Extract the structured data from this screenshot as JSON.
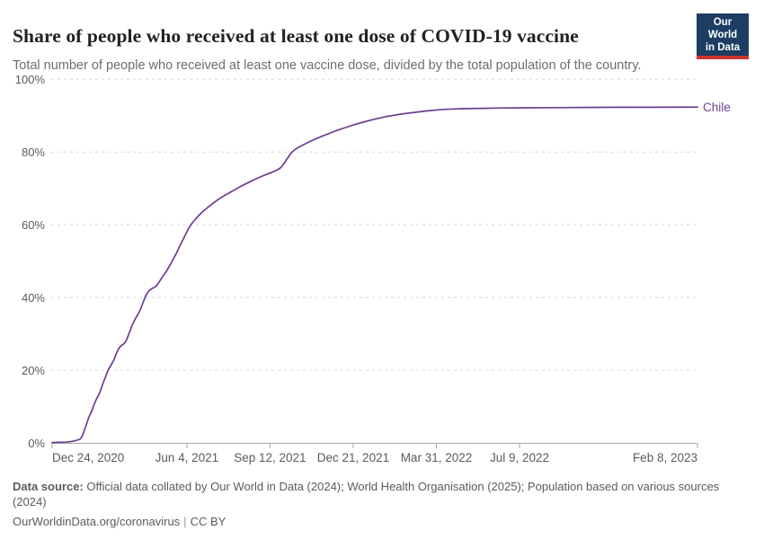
{
  "header": {
    "logo": {
      "line1": "Our World",
      "line2": "in Data"
    }
  },
  "chart_data": {
    "type": "line",
    "title": "Share of people who received at least one dose of COVID-19 vaccine",
    "subtitle": "Total number of people who received at least one vaccine dose, divided by the total population of the country.",
    "legend_position": "right-end-of-line",
    "grid": "dashed-horizontal",
    "ylim": [
      0,
      100
    ],
    "y_axis": {
      "unit": "%",
      "ticks": [
        {
          "label": "0%",
          "value": 0
        },
        {
          "label": "20%",
          "value": 20
        },
        {
          "label": "40%",
          "value": 40
        },
        {
          "label": "60%",
          "value": 60
        },
        {
          "label": "80%",
          "value": 80
        },
        {
          "label": "100%",
          "value": 100
        }
      ]
    },
    "x_axis": {
      "start_date": "Dec 24, 2020",
      "end_date": "Feb 8, 2023",
      "ticks": [
        {
          "label": "Dec 24, 2020",
          "day": 0,
          "align": "left"
        },
        {
          "label": "Jun 4, 2021",
          "day": 162,
          "align": "center"
        },
        {
          "label": "Sep 12, 2021",
          "day": 262,
          "align": "center"
        },
        {
          "label": "Dec 21, 2021",
          "day": 362,
          "align": "center"
        },
        {
          "label": "Mar 31, 2022",
          "day": 462,
          "align": "center"
        },
        {
          "label": "Jul 9, 2022",
          "day": 562,
          "align": "center"
        },
        {
          "label": "Feb 8, 2023",
          "day": 776,
          "align": "right"
        }
      ]
    },
    "series": [
      {
        "name": "Chile",
        "color": "#6d3e91",
        "x_unit": "days since Dec 24, 2020",
        "y_unit": "percent of population",
        "points": [
          [
            0,
            0.1
          ],
          [
            8,
            0.15
          ],
          [
            16,
            0.2
          ],
          [
            24,
            0.4
          ],
          [
            29,
            0.7
          ],
          [
            32,
            0.9
          ],
          [
            34,
            1.1
          ],
          [
            36,
            1.8
          ],
          [
            38,
            3.0
          ],
          [
            40,
            4.3
          ],
          [
            42,
            5.6
          ],
          [
            44,
            7.0
          ],
          [
            46,
            8.0
          ],
          [
            48,
            9.0
          ],
          [
            50,
            10.3
          ],
          [
            52,
            11.4
          ],
          [
            54,
            12.4
          ],
          [
            56,
            13.2
          ],
          [
            58,
            14.3
          ],
          [
            60,
            15.6
          ],
          [
            62,
            16.9
          ],
          [
            64,
            18.0
          ],
          [
            66,
            19.3
          ],
          [
            68,
            20.3
          ],
          [
            70,
            21.1
          ],
          [
            72,
            21.9
          ],
          [
            74,
            22.7
          ],
          [
            76,
            23.9
          ],
          [
            78,
            25.0
          ],
          [
            80,
            25.9
          ],
          [
            82,
            26.5
          ],
          [
            84,
            26.9
          ],
          [
            86,
            27.2
          ],
          [
            88,
            27.7
          ],
          [
            90,
            28.6
          ],
          [
            92,
            29.8
          ],
          [
            94,
            31.0
          ],
          [
            96,
            32.2
          ],
          [
            98,
            33.2
          ],
          [
            100,
            34.1
          ],
          [
            102,
            34.9
          ],
          [
            104,
            35.7
          ],
          [
            106,
            36.6
          ],
          [
            108,
            37.8
          ],
          [
            110,
            39.0
          ],
          [
            112,
            40.2
          ],
          [
            114,
            41.0
          ],
          [
            116,
            41.7
          ],
          [
            119,
            42.3
          ],
          [
            122,
            42.7
          ],
          [
            125,
            43.1
          ],
          [
            128,
            44.0
          ],
          [
            131,
            45.1
          ],
          [
            134,
            46.1
          ],
          [
            137,
            47.1
          ],
          [
            140,
            48.2
          ],
          [
            143,
            49.4
          ],
          [
            146,
            50.7
          ],
          [
            149,
            52.0
          ],
          [
            152,
            53.4
          ],
          [
            155,
            54.8
          ],
          [
            158,
            56.2
          ],
          [
            161,
            57.6
          ],
          [
            164,
            58.9
          ],
          [
            167,
            60.0
          ],
          [
            170,
            60.9
          ],
          [
            174,
            62.0
          ],
          [
            178,
            62.9
          ],
          [
            183,
            64.0
          ],
          [
            188,
            64.9
          ],
          [
            194,
            66.0
          ],
          [
            200,
            67.0
          ],
          [
            207,
            68.0
          ],
          [
            214,
            68.9
          ],
          [
            221,
            69.8
          ],
          [
            228,
            70.7
          ],
          [
            236,
            71.6
          ],
          [
            243,
            72.4
          ],
          [
            250,
            73.1
          ],
          [
            256,
            73.7
          ],
          [
            262,
            74.2
          ],
          [
            267,
            74.7
          ],
          [
            271,
            75.1
          ],
          [
            275,
            75.7
          ],
          [
            278,
            76.6
          ],
          [
            281,
            77.6
          ],
          [
            284,
            78.6
          ],
          [
            287,
            79.6
          ],
          [
            290,
            80.3
          ],
          [
            294,
            81.0
          ],
          [
            298,
            81.5
          ],
          [
            303,
            82.1
          ],
          [
            309,
            82.8
          ],
          [
            316,
            83.5
          ],
          [
            324,
            84.3
          ],
          [
            332,
            85.0
          ],
          [
            341,
            85.8
          ],
          [
            351,
            86.6
          ],
          [
            362,
            87.4
          ],
          [
            374,
            88.2
          ],
          [
            387,
            89.0
          ],
          [
            401,
            89.7
          ],
          [
            416,
            90.3
          ],
          [
            432,
            90.8
          ],
          [
            450,
            91.3
          ],
          [
            470,
            91.7
          ],
          [
            492,
            91.9
          ],
          [
            516,
            92.0
          ],
          [
            542,
            92.1
          ],
          [
            570,
            92.15
          ],
          [
            602,
            92.2
          ],
          [
            640,
            92.25
          ],
          [
            682,
            92.3
          ],
          [
            726,
            92.3
          ],
          [
            776,
            92.35
          ]
        ]
      }
    ]
  },
  "footer": {
    "data_source_label": "Data source:",
    "data_source_text": " Official data collated by Our World in Data (2024); World Health Organisation (2025); Population based on various sources (2024)",
    "link_text": "OurWorldinData.org/coronavirus",
    "separator": "|",
    "license": "CC BY"
  }
}
